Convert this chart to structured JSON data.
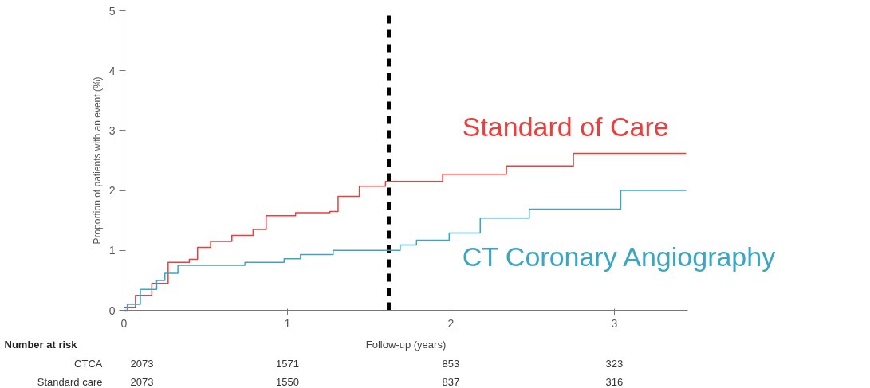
{
  "chart_data": {
    "type": "step",
    "ylabel": "Proportion of patients with an event (%)",
    "xlabel": "Follow-up (years)",
    "xlim": [
      0,
      3.45
    ],
    "ylim": [
      0,
      5
    ],
    "xticks": [
      0,
      1,
      2,
      3
    ],
    "yticks": [
      0,
      1,
      2,
      3,
      4,
      5
    ],
    "grid": false,
    "series": [
      {
        "name": "Standard of Care",
        "color": "#e8403f",
        "x": [
          0,
          0.07,
          0.17,
          0.27,
          0.4,
          0.45,
          0.53,
          0.66,
          0.79,
          0.87,
          1.05,
          1.26,
          1.31,
          1.44,
          1.6,
          1.95,
          2.34,
          2.75,
          3.44
        ],
        "values": [
          0.05,
          0.25,
          0.45,
          0.8,
          0.85,
          1.05,
          1.15,
          1.25,
          1.35,
          1.58,
          1.63,
          1.65,
          1.9,
          2.07,
          2.15,
          2.27,
          2.41,
          2.62,
          2.62
        ]
      },
      {
        "name": "CT Coronary Angiography",
        "color": "#3aa6c4",
        "x": [
          0,
          0.02,
          0.1,
          0.2,
          0.25,
          0.33,
          0.74,
          0.98,
          1.08,
          1.28,
          1.69,
          1.79,
          1.99,
          2.18,
          2.48,
          3.04,
          3.44
        ],
        "values": [
          0,
          0.1,
          0.35,
          0.5,
          0.62,
          0.75,
          0.8,
          0.86,
          0.93,
          1.0,
          1.09,
          1.17,
          1.29,
          1.54,
          1.69,
          2.0,
          2.0
        ]
      }
    ],
    "ref_lines": [
      {
        "axis": "x",
        "value": 1.62,
        "color": "#000000",
        "line_style": "dashed"
      }
    ],
    "annotations": [
      "Number at risk",
      "CTCA",
      "2073",
      "1571",
      "853",
      "323",
      "Standard care",
      "2073",
      "1550",
      "837",
      "316"
    ]
  }
}
